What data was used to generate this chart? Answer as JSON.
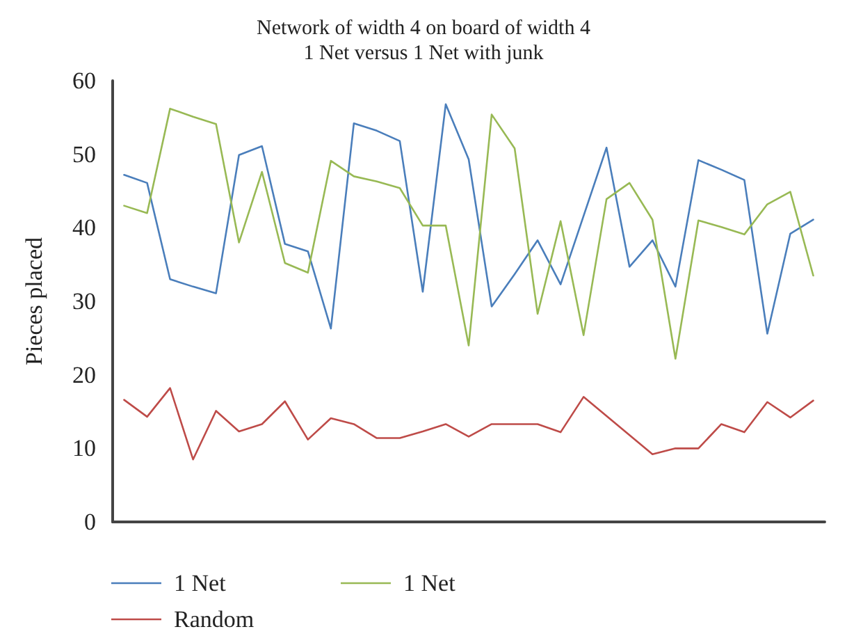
{
  "chart_data": {
    "type": "line",
    "title": "Network of width 4 on board of width 4",
    "subtitle": "1 Net versus 1 Net with junk",
    "ylabel": "Pieces placed",
    "categories": [
      null,
      null,
      null,
      null,
      null,
      null,
      null,
      null,
      null,
      null,
      null,
      null,
      null,
      null,
      null,
      null,
      null,
      null,
      null,
      null,
      null,
      null,
      null,
      null,
      null,
      null,
      null,
      null,
      null,
      null,
      null
    ],
    "series": [
      {
        "name": "1 Net",
        "color": "#4a7ebb",
        "values": [
          47.2,
          46.1,
          33.0,
          32.0,
          31.1,
          49.9,
          51.1,
          37.8,
          36.8,
          26.3,
          54.2,
          53.2,
          51.8,
          31.3,
          56.8,
          49.3,
          29.3,
          33.7,
          38.3,
          32.3,
          41.6,
          50.9,
          34.7,
          38.3,
          32.0,
          49.2,
          47.9,
          46.5,
          25.6,
          39.2,
          41.1
        ]
      },
      {
        "name": "1 Net",
        "color": "#98b954",
        "values": [
          43.0,
          42.0,
          56.2,
          55.1,
          54.1,
          38.0,
          47.6,
          35.2,
          33.9,
          49.1,
          47.0,
          46.3,
          45.4,
          40.3,
          40.3,
          24.0,
          55.4,
          50.8,
          28.3,
          40.9,
          25.4,
          43.9,
          46.1,
          41.1,
          22.2,
          41.0,
          40.1,
          39.1,
          43.2,
          44.9,
          33.5
        ]
      },
      {
        "name": "Random",
        "color": "#be4b48",
        "values": [
          16.6,
          14.3,
          18.2,
          8.5,
          15.1,
          12.3,
          13.3,
          16.4,
          11.2,
          14.1,
          13.3,
          11.4,
          11.4,
          12.3,
          13.3,
          11.6,
          13.3,
          13.3,
          13.3,
          12.2,
          17.0,
          14.4,
          11.8,
          9.2,
          10.0,
          10.0,
          13.3,
          12.2,
          16.3,
          14.2,
          16.5
        ]
      }
    ],
    "ylim": [
      0,
      60
    ],
    "yticks": [
      0,
      10,
      20,
      30,
      40,
      50,
      60
    ],
    "grid": false,
    "legend": "bottom",
    "marker": "none",
    "line_style": "solid"
  }
}
